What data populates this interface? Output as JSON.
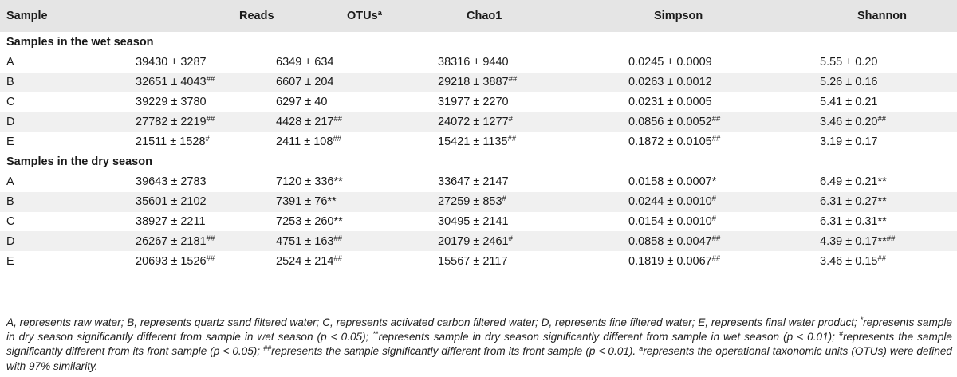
{
  "headers": {
    "sample": "Sample",
    "reads": "Reads",
    "otus": "OTUs",
    "otus_sup": "a",
    "chao1": "Chao1",
    "simpson": "Simpson",
    "shannon": "Shannon"
  },
  "wet": {
    "title": "Samples in the wet season",
    "rows": [
      {
        "sample": "A",
        "reads": "39430 ± 3287",
        "reads_sup": "",
        "otus": "6349 ± 634",
        "otus_sup": "",
        "chao1": "38316 ± 9440",
        "chao1_sup": "",
        "simpson": "0.0245 ± 0.0009",
        "simpson_sup": "",
        "shannon": "5.55 ± 0.20",
        "shannon_sup": ""
      },
      {
        "sample": "B",
        "reads": "32651 ± 4043",
        "reads_sup": "##",
        "otus": "6607 ± 204",
        "otus_sup": "",
        "chao1": "29218 ± 3887",
        "chao1_sup": "##",
        "simpson": "0.0263 ± 0.0012",
        "simpson_sup": "",
        "shannon": "5.26 ± 0.16",
        "shannon_sup": ""
      },
      {
        "sample": "C",
        "reads": "39229 ± 3780",
        "reads_sup": "",
        "otus": "6297 ± 40",
        "otus_sup": "",
        "chao1": "31977 ± 2270",
        "chao1_sup": "",
        "simpson": "0.0231 ± 0.0005",
        "simpson_sup": "",
        "shannon": "5.41 ± 0.21",
        "shannon_sup": ""
      },
      {
        "sample": "D",
        "reads": "27782 ± 2219",
        "reads_sup": "##",
        "otus": "4428 ± 217",
        "otus_sup": "##",
        "chao1": "24072 ± 1277",
        "chao1_sup": "#",
        "simpson": "0.0856 ± 0.0052",
        "simpson_sup": "##",
        "shannon": "3.46 ± 0.20",
        "shannon_sup": "##"
      },
      {
        "sample": "E",
        "reads": "21511 ± 1528",
        "reads_sup": "#",
        "otus": "2411 ± 108",
        "otus_sup": "##",
        "chao1": "15421 ± 1135",
        "chao1_sup": "##",
        "simpson": "0.1872 ± 0.0105",
        "simpson_sup": "##",
        "shannon": "3.19 ± 0.17",
        "shannon_sup": ""
      }
    ]
  },
  "dry": {
    "title": "Samples in the dry season",
    "rows": [
      {
        "sample": "A",
        "reads": "39643 ± 2783",
        "reads_sup": "",
        "otus": "7120 ± 336**",
        "otus_sup": "",
        "chao1": "33647 ± 2147",
        "chao1_sup": "",
        "simpson": "0.0158 ± 0.0007*",
        "simpson_sup": "",
        "shannon": "6.49 ± 0.21**",
        "shannon_sup": ""
      },
      {
        "sample": "B",
        "reads": "35601 ± 2102",
        "reads_sup": "",
        "otus": "7391 ± 76**",
        "otus_sup": "",
        "chao1": "27259 ± 853",
        "chao1_sup": "#",
        "simpson": "0.0244 ± 0.0010",
        "simpson_sup": "#",
        "shannon": "6.31 ± 0.27**",
        "shannon_sup": ""
      },
      {
        "sample": "C",
        "reads": "38927 ± 2211",
        "reads_sup": "",
        "otus": "7253 ± 260**",
        "otus_sup": "",
        "chao1": "30495 ± 2141",
        "chao1_sup": "",
        "simpson": "0.0154 ± 0.0010",
        "simpson_sup": "#",
        "shannon": "6.31 ± 0.31**",
        "shannon_sup": ""
      },
      {
        "sample": "D",
        "reads": "26267 ± 2181",
        "reads_sup": "##",
        "otus": "4751 ± 163",
        "otus_sup": "##",
        "chao1": "20179 ± 2461",
        "chao1_sup": "#",
        "simpson": "0.0858 ± 0.0047",
        "simpson_sup": "##",
        "shannon": "4.39 ± 0.17**",
        "shannon_sup": "##"
      },
      {
        "sample": "E",
        "reads": "20693 ± 1526",
        "reads_sup": "##",
        "otus": "2524 ± 214",
        "otus_sup": "##",
        "chao1": "15567 ± 2117",
        "chao1_sup": "",
        "simpson": "0.1819 ± 0.0067",
        "simpson_sup": "##",
        "shannon": "3.46 ± 0.15",
        "shannon_sup": "##"
      }
    ]
  },
  "footnote": {
    "part1": "A, represents raw water; B, represents quartz sand filtered water; C, represents activated carbon filtered water; D, represents fine filtered water; E, represents final water product; ",
    "sym1": "*",
    "part2": "represents sample in dry season significantly different from sample in wet season (p < 0.05); ",
    "sym2": "**",
    "part3": "represents sample in dry season significantly different from sample in wet season (p < 0.01); ",
    "sym3": "#",
    "part4": "represents the sample significantly different from its front sample (p < 0.05); ",
    "sym4": "##",
    "part5": "represents the sample significantly different from its front sample (p < 0.01). ",
    "sym5": "a",
    "part6": "represents the operational taxonomic units (OTUs) were defined with 97% similarity."
  }
}
